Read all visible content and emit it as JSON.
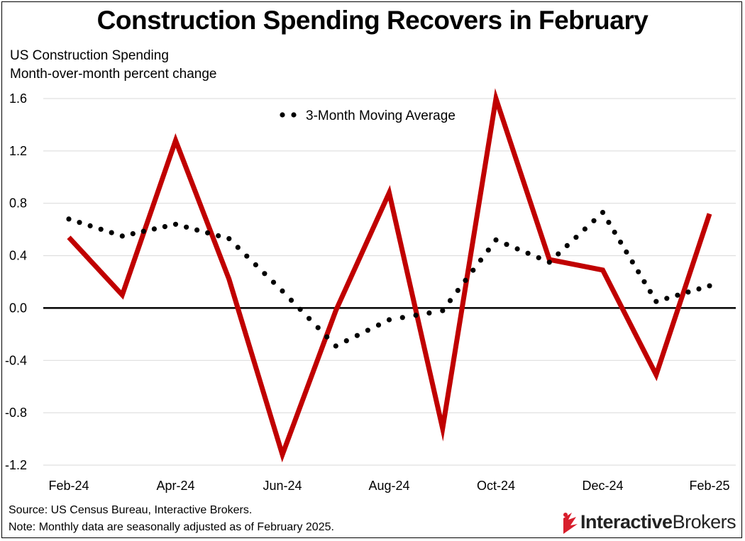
{
  "title": "Construction Spending Recovers in February",
  "subtitle_line1": "US Construction Spending",
  "subtitle_line2": "Month-over-month percent change",
  "footer": {
    "source": "Source: US Census Bureau, Interactive Brokers.",
    "note": "Note: Monthly data are seasonally adjusted as of February 2025."
  },
  "logo": {
    "part1": "Interactive",
    "part2": "Brokers"
  },
  "colors": {
    "line": "#c00000",
    "moving_avg": "#000000",
    "logo_red": "#d81e2c"
  },
  "chart_data": {
    "type": "line",
    "x": [
      "Feb-24",
      "Mar-24",
      "Apr-24",
      "May-24",
      "Jun-24",
      "Jul-24",
      "Aug-24",
      "Sep-24",
      "Oct-24",
      "Nov-24",
      "Dec-24",
      "Jan-25",
      "Feb-25"
    ],
    "x_tick_labels": [
      "Feb-24",
      "Apr-24",
      "Jun-24",
      "Aug-24",
      "Oct-24",
      "Dec-24",
      "Feb-25"
    ],
    "y_tick_labels": [
      "1.6",
      "1.2",
      "0.8",
      "0.4",
      "0.0",
      "-0.4",
      "-0.8",
      "-1.2"
    ],
    "ylim": [
      -1.2,
      1.6
    ],
    "grid": true,
    "series": [
      {
        "name": "Monthly % change",
        "style": "solid",
        "values": [
          0.54,
          0.1,
          1.28,
          0.22,
          -1.12,
          -0.02,
          0.88,
          -0.92,
          1.6,
          0.37,
          0.29,
          -0.51,
          0.72
        ]
      },
      {
        "name": "3-Month Moving Average",
        "style": "dotted",
        "values": [
          0.68,
          0.55,
          0.64,
          0.53,
          0.13,
          -0.29,
          -0.09,
          -0.02,
          0.52,
          0.35,
          0.73,
          0.05,
          0.17
        ]
      }
    ],
    "legend": [
      "3-Month Moving Average"
    ]
  }
}
